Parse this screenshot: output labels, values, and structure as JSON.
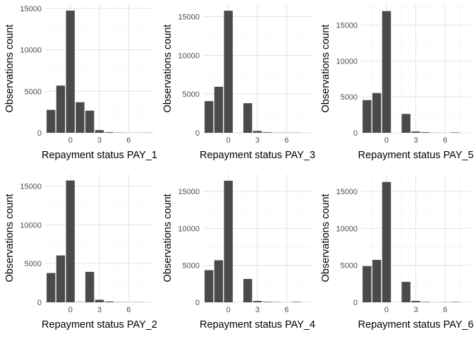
{
  "chart_data": [
    {
      "type": "bar",
      "xlabel": "Repayment status PAY_1",
      "ylabel": "Observations count",
      "x": [
        -2,
        -1,
        0,
        1,
        2,
        3,
        4,
        5,
        6,
        7,
        8
      ],
      "values": [
        2759,
        5686,
        14737,
        3688,
        2667,
        322,
        76,
        26,
        11,
        9,
        19
      ],
      "xlim": [
        -2.6,
        8.6
      ],
      "ylim": [
        0,
        15500
      ],
      "xticks": [
        0,
        3,
        6
      ],
      "yticks": [
        0,
        5000,
        10000,
        15000
      ],
      "xtick_labels": [
        "0",
        "3",
        "6"
      ],
      "ytick_labels": [
        "0",
        "5000",
        "10000",
        "15000"
      ],
      "grid": true
    },
    {
      "type": "bar",
      "xlabel": "Repayment status PAY_3",
      "ylabel": "Observations count",
      "x": [
        -2,
        -1,
        0,
        1,
        2,
        3,
        4,
        5,
        6,
        7,
        8
      ],
      "values": [
        4085,
        5938,
        15764,
        4,
        3819,
        240,
        76,
        21,
        23,
        27,
        3
      ],
      "xlim": [
        -2.6,
        8.6
      ],
      "ylim": [
        0,
        16600
      ],
      "xticks": [
        0,
        3,
        6
      ],
      "yticks": [
        0,
        5000,
        10000,
        15000
      ],
      "xtick_labels": [
        "0",
        "3",
        "6"
      ],
      "ytick_labels": [
        "0",
        "5000",
        "10000",
        "15000"
      ],
      "grid": true
    },
    {
      "type": "bar",
      "xlabel": "Repayment status PAY_5",
      "ylabel": "Observations count",
      "x": [
        -2,
        -1,
        0,
        2,
        3,
        4,
        5,
        6,
        7,
        8
      ],
      "values": [
        4546,
        5539,
        16947,
        2626,
        178,
        84,
        17,
        4,
        58,
        1
      ],
      "xlim": [
        -2.6,
        8.6
      ],
      "ylim": [
        0,
        17900
      ],
      "xticks": [
        0,
        3,
        6
      ],
      "yticks": [
        0,
        5000,
        10000,
        15000
      ],
      "xtick_labels": [
        "0",
        "3",
        "6"
      ],
      "ytick_labels": [
        "0",
        "5000",
        "10000",
        "15000"
      ],
      "grid": true
    },
    {
      "type": "bar",
      "xlabel": "Repayment status PAY_2",
      "ylabel": "Observations count",
      "x": [
        -2,
        -1,
        0,
        1,
        2,
        3,
        4,
        5,
        6,
        7,
        8
      ],
      "values": [
        3782,
        6050,
        15730,
        28,
        3927,
        326,
        99,
        25,
        12,
        20,
        1
      ],
      "xlim": [
        -2.6,
        8.6
      ],
      "ylim": [
        0,
        16600
      ],
      "xticks": [
        0,
        3,
        6
      ],
      "yticks": [
        0,
        5000,
        10000,
        15000
      ],
      "xtick_labels": [
        "0",
        "3",
        "6"
      ],
      "ytick_labels": [
        "0",
        "5000",
        "10000",
        "15000"
      ],
      "grid": true
    },
    {
      "type": "bar",
      "xlabel": "Repayment status PAY_4",
      "ylabel": "Observations count",
      "x": [
        -2,
        -1,
        0,
        1,
        2,
        3,
        4,
        5,
        6,
        7,
        8
      ],
      "values": [
        4348,
        5687,
        16455,
        2,
        3159,
        180,
        69,
        35,
        5,
        58,
        2
      ],
      "xlim": [
        -2.6,
        8.6
      ],
      "ylim": [
        0,
        17400
      ],
      "xticks": [
        0,
        3,
        6
      ],
      "yticks": [
        0,
        5000,
        10000,
        15000
      ],
      "xtick_labels": [
        "0",
        "3",
        "6"
      ],
      "ytick_labels": [
        "0",
        "5000",
        "10000",
        "15000"
      ],
      "grid": true
    },
    {
      "type": "bar",
      "xlabel": "Repayment status PAY_6",
      "ylabel": "Observations count",
      "x": [
        -2,
        -1,
        0,
        2,
        3,
        4,
        5,
        6,
        7,
        8
      ],
      "values": [
        4895,
        5740,
        16286,
        2766,
        184,
        49,
        13,
        19,
        46,
        2
      ],
      "xlim": [
        -2.6,
        8.6
      ],
      "ylim": [
        0,
        17400
      ],
      "xticks": [
        0,
        3,
        6
      ],
      "yticks": [
        0,
        5000,
        10000,
        15000
      ],
      "xtick_labels": [
        "0",
        "3",
        "6"
      ],
      "ytick_labels": [
        "0",
        "5000",
        "10000",
        "15000"
      ],
      "grid": true
    }
  ],
  "style": {
    "bar_color": "#4a4a4a",
    "grid_major_color": "#e3e3e3",
    "grid_minor_color": "#f2f2f2",
    "tick_label_color": "#4d4d4d"
  }
}
